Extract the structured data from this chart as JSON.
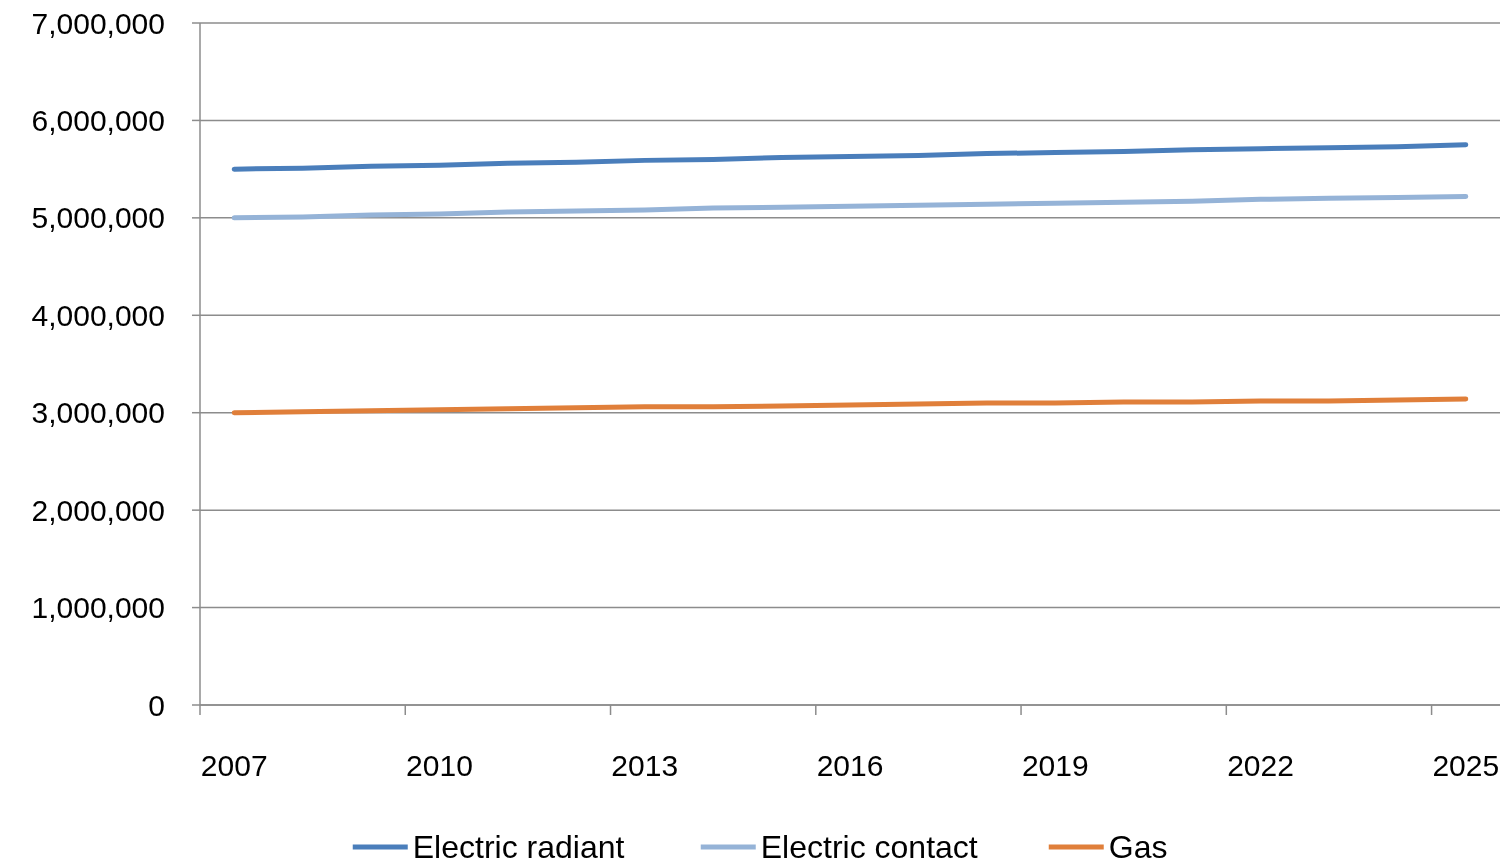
{
  "chart_data": {
    "type": "line",
    "categories": [
      "2007",
      null,
      null,
      "2010",
      null,
      null,
      "2013",
      null,
      null,
      "2016",
      null,
      null,
      "2019",
      null,
      null,
      "2022",
      null,
      null,
      "2025"
    ],
    "ylim": [
      0,
      7000000
    ],
    "yticks": [
      {
        "value": 0,
        "label": "0"
      },
      {
        "value": 1000000,
        "label": "1,000,000"
      },
      {
        "value": 2000000,
        "label": "2,000,000"
      },
      {
        "value": 3000000,
        "label": "3,000,000"
      },
      {
        "value": 4000000,
        "label": "4,000,000"
      },
      {
        "value": 5000000,
        "label": "5,000,000"
      },
      {
        "value": 6000000,
        "label": "6,000,000"
      },
      {
        "value": 7000000,
        "label": "7,000,000"
      }
    ],
    "grid": "y",
    "legend": "bottom",
    "marker": "none",
    "line_style": "solid",
    "series": [
      {
        "name": "Electric radiant",
        "color": "#4a7ebb",
        "values": [
          5500000,
          5510000,
          5530000,
          5540000,
          5560000,
          5570000,
          5590000,
          5600000,
          5620000,
          5630000,
          5640000,
          5660000,
          5670000,
          5680000,
          5700000,
          5710000,
          5720000,
          5730000,
          5750000
        ]
      },
      {
        "name": "Electric contact",
        "color": "#95b3d7",
        "values": [
          5000000,
          5010000,
          5030000,
          5040000,
          5060000,
          5070000,
          5080000,
          5100000,
          5110000,
          5120000,
          5130000,
          5140000,
          5150000,
          5160000,
          5170000,
          5190000,
          5200000,
          5210000,
          5220000
        ]
      },
      {
        "name": "Gas",
        "color": "#e07f3a",
        "values": [
          3000000,
          3010000,
          3020000,
          3030000,
          3040000,
          3050000,
          3060000,
          3060000,
          3070000,
          3080000,
          3090000,
          3100000,
          3100000,
          3110000,
          3110000,
          3120000,
          3120000,
          3130000,
          3140000
        ]
      }
    ]
  }
}
